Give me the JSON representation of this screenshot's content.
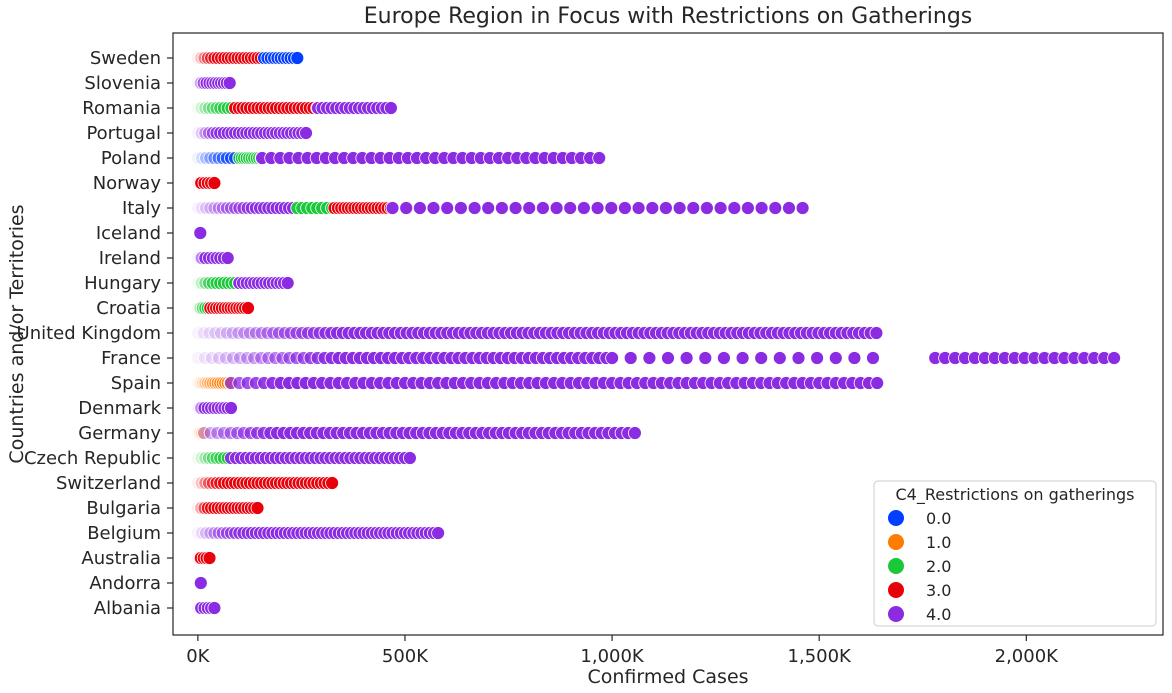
{
  "chart_data": {
    "type": "scatter",
    "title": "Europe Region in Focus with Restrictions on Gatherings",
    "xlabel": "Confirmed Cases",
    "ylabel": "Countries and/or Territories",
    "xlim": [
      -60000,
      2330000
    ],
    "xticks": [
      {
        "value": 0,
        "label": "0K"
      },
      {
        "value": 500000,
        "label": "500K"
      },
      {
        "value": 1000000,
        "label": "1,000K"
      },
      {
        "value": 1500000,
        "label": "1,500K"
      },
      {
        "value": 2000000,
        "label": "2,000K"
      }
    ],
    "categories": [
      "Sweden",
      "Slovenia",
      "Romania",
      "Portugal",
      "Poland",
      "Norway",
      "Italy",
      "Iceland",
      "Ireland",
      "Hungary",
      "Croatia",
      "United Kingdom",
      "France",
      "Spain",
      "Denmark",
      "Germany",
      "Czech Republic",
      "Switzerland",
      "Bulgaria",
      "Belgium",
      "Australia",
      "Andorra",
      "Albania"
    ],
    "legend": {
      "title": "C4_Restrictions on gatherings",
      "position": "lower-right",
      "items": [
        {
          "label": "0.0",
          "color": "#023eff"
        },
        {
          "label": "1.0",
          "color": "#ff7c00"
        },
        {
          "label": "2.0",
          "color": "#1ac938"
        },
        {
          "label": "3.0",
          "color": "#e8000b"
        },
        {
          "label": "4.0",
          "color": "#8b2be2"
        }
      ]
    },
    "series": [
      {
        "category": "Sweden",
        "segments": [
          {
            "level": 3.0,
            "from": 0,
            "to": 160000,
            "step": 8000
          },
          {
            "level": 0.0,
            "from": 160000,
            "to": 245000,
            "step": 8000
          }
        ]
      },
      {
        "category": "Slovenia",
        "segments": [
          {
            "level": 4.0,
            "from": 0,
            "to": 78000,
            "step": 7000
          }
        ]
      },
      {
        "category": "Romania",
        "segments": [
          {
            "level": 2.0,
            "from": 0,
            "to": 90000,
            "step": 9000
          },
          {
            "level": 3.0,
            "from": 90000,
            "to": 290000,
            "step": 9000
          },
          {
            "level": 4.0,
            "from": 290000,
            "to": 475000,
            "step": 11000
          }
        ]
      },
      {
        "category": "Portugal",
        "segments": [
          {
            "level": 4.0,
            "from": 0,
            "to": 265000,
            "step": 9000
          }
        ]
      },
      {
        "category": "Poland",
        "segments": [
          {
            "level": 0.0,
            "from": 0,
            "to": 100000,
            "step": 10000
          },
          {
            "level": 2.0,
            "from": 100000,
            "to": 155000,
            "step": 6000
          },
          {
            "level": 4.0,
            "from": 155000,
            "to": 980000,
            "step": 22000
          }
        ]
      },
      {
        "category": "Norway",
        "segments": [
          {
            "level": 3.0,
            "from": 0,
            "to": 40000,
            "step": 8000
          }
        ]
      },
      {
        "category": "Italy",
        "segments": [
          {
            "level": 4.0,
            "from": 0,
            "to": 240000,
            "step": 10000
          },
          {
            "level": 2.0,
            "from": 240000,
            "to": 330000,
            "step": 12000
          },
          {
            "level": 3.0,
            "from": 330000,
            "to": 470000,
            "step": 8000
          },
          {
            "level": 4.0,
            "from": 470000,
            "to": 1490000,
            "step": 33000
          }
        ]
      },
      {
        "category": "Iceland",
        "segments": [
          {
            "level": 4.0,
            "from": 6000,
            "to": 6000,
            "step": 1
          }
        ]
      },
      {
        "category": "Ireland",
        "segments": [
          {
            "level": 4.0,
            "from": 0,
            "to": 72000,
            "step": 9000
          }
        ]
      },
      {
        "category": "Hungary",
        "segments": [
          {
            "level": 2.0,
            "from": 0,
            "to": 100000,
            "step": 9000
          },
          {
            "level": 4.0,
            "from": 100000,
            "to": 220000,
            "step": 9000
          }
        ]
      },
      {
        "category": "Croatia",
        "segments": [
          {
            "level": 2.0,
            "from": 0,
            "to": 30000,
            "step": 6000
          },
          {
            "level": 3.0,
            "from": 30000,
            "to": 125000,
            "step": 7000
          }
        ]
      },
      {
        "category": "United Kingdom",
        "segments": [
          {
            "level": 4.0,
            "from": 0,
            "to": 1640000,
            "step": 14000
          }
        ]
      },
      {
        "category": "France",
        "segments": [
          {
            "level": 4.0,
            "from": 0,
            "to": 1000000,
            "step": 17000
          },
          {
            "level": 4.0,
            "from": 1000000,
            "to": 1665000,
            "step": 45000
          },
          {
            "level": 4.0,
            "from": 1780000,
            "to": 2225000,
            "step": 24000
          }
        ]
      },
      {
        "category": "Spain",
        "segments": [
          {
            "level": 1.0,
            "from": 0,
            "to": 80000,
            "step": 6000
          },
          {
            "level": 4.0,
            "from": 80000,
            "to": 1640000,
            "step": 20000
          }
        ]
      },
      {
        "category": "Denmark",
        "segments": [
          {
            "level": 4.0,
            "from": 0,
            "to": 82000,
            "step": 8000
          }
        ]
      },
      {
        "category": "Germany",
        "segments": [
          {
            "level": 1.0,
            "from": 0,
            "to": 15000,
            "step": 5000
          },
          {
            "level": 4.0,
            "from": 15000,
            "to": 1065000,
            "step": 16000
          }
        ]
      },
      {
        "category": "Czech Republic",
        "segments": [
          {
            "level": 2.0,
            "from": 0,
            "to": 80000,
            "step": 9000
          },
          {
            "level": 4.0,
            "from": 80000,
            "to": 520000,
            "step": 12000
          }
        ]
      },
      {
        "category": "Switzerland",
        "segments": [
          {
            "level": 3.0,
            "from": 0,
            "to": 330000,
            "step": 9000
          }
        ]
      },
      {
        "category": "Bulgaria",
        "segments": [
          {
            "level": 3.0,
            "from": 0,
            "to": 145000,
            "step": 8000
          }
        ]
      },
      {
        "category": "Belgium",
        "segments": [
          {
            "level": 4.0,
            "from": 0,
            "to": 580000,
            "step": 10000
          }
        ]
      },
      {
        "category": "Australia",
        "segments": [
          {
            "level": 3.0,
            "from": 0,
            "to": 28000,
            "step": 7000
          }
        ]
      },
      {
        "category": "Andorra",
        "segments": [
          {
            "level": 4.0,
            "from": 7000,
            "to": 7000,
            "step": 1
          }
        ]
      },
      {
        "category": "Albania",
        "segments": [
          {
            "level": 4.0,
            "from": 0,
            "to": 40000,
            "step": 8000
          }
        ]
      }
    ]
  }
}
